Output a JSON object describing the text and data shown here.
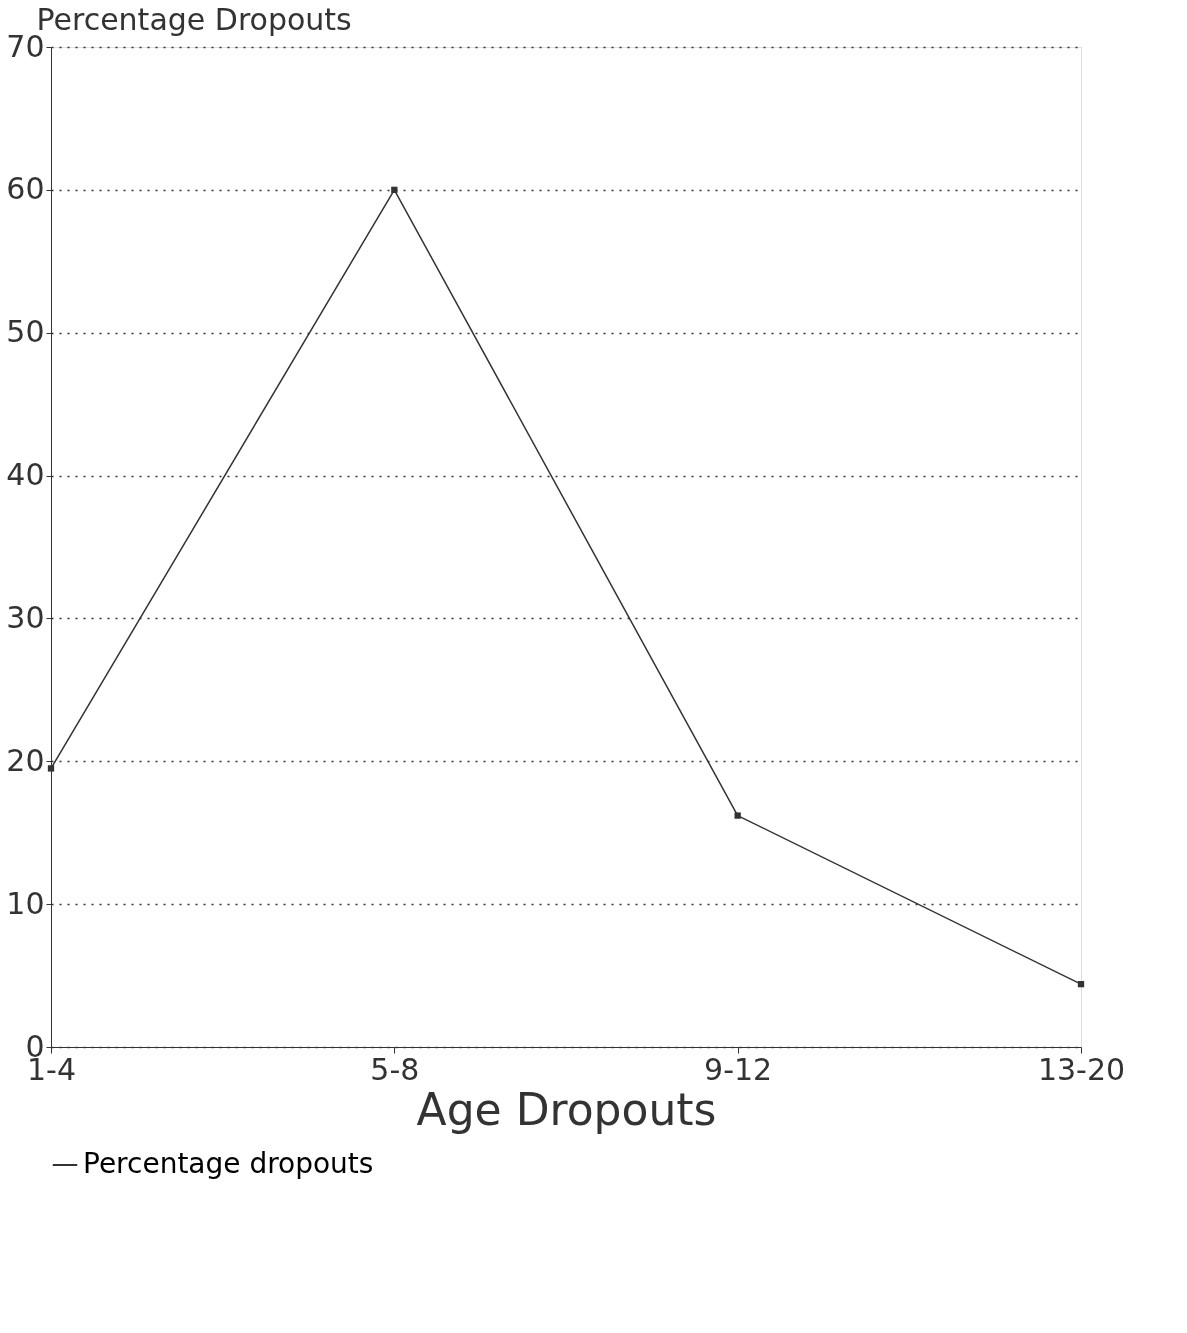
{
  "chart_data": {
    "type": "line",
    "xlabel": "Age Dropouts",
    "ylabel": "Percentage Dropouts",
    "categories": [
      "1-4",
      "5-8",
      "9-12",
      "13-20"
    ],
    "series": [
      {
        "name": "Percentage dropouts",
        "color": "#333333",
        "values": [
          19.5,
          60,
          16.2,
          4.4
        ]
      }
    ],
    "ylim": [
      0,
      70
    ],
    "yticks": [
      0,
      10,
      20,
      30,
      40,
      50,
      60,
      70
    ],
    "grid": "y",
    "legend": "bottom",
    "marker": "square",
    "line_style": "solid"
  }
}
